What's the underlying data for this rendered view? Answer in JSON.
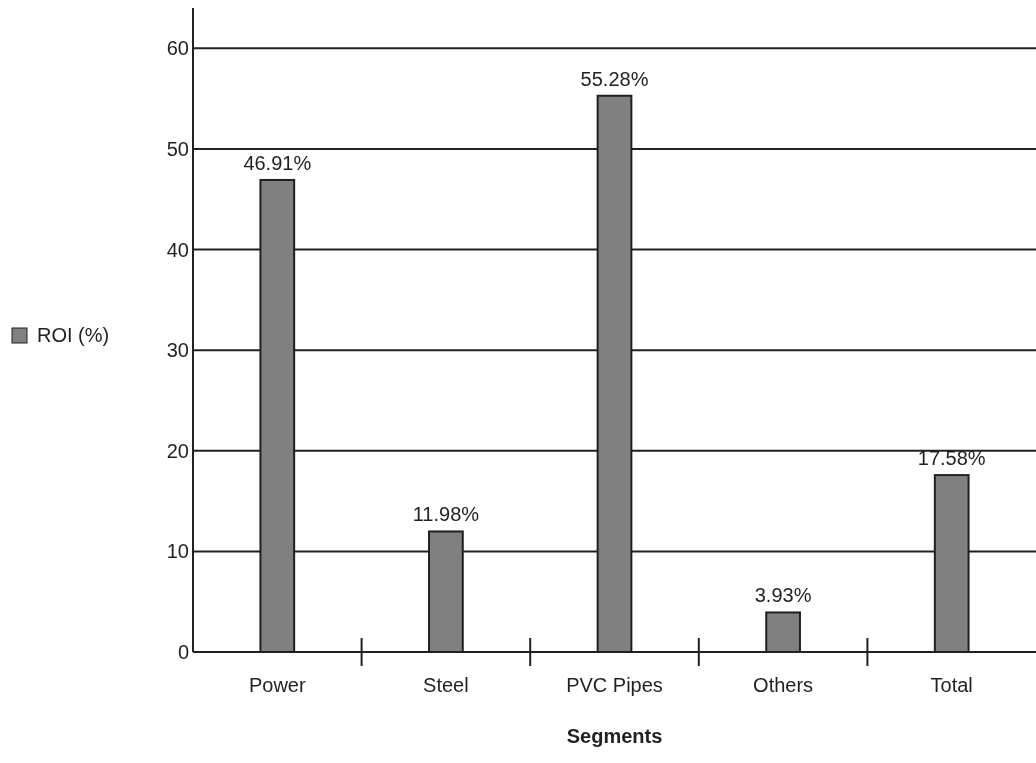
{
  "chart_data": {
    "type": "bar",
    "xlabel": "Segments",
    "categories": [
      "Power",
      "Steel",
      "PVC Pipes",
      "Others",
      "Total"
    ],
    "series": [
      {
        "name": "ROI (%)",
        "color": "#808080",
        "values": [
          46.91,
          11.98,
          55.28,
          3.93,
          17.58
        ]
      }
    ],
    "value_labels": [
      "46.91%",
      "11.98%",
      "55.28%",
      "3.93%",
      "17.58%"
    ],
    "ylim": [
      0,
      64
    ],
    "yticks": [
      0,
      10,
      20,
      30,
      40,
      50,
      60
    ],
    "grid": "y",
    "legend": "left"
  }
}
